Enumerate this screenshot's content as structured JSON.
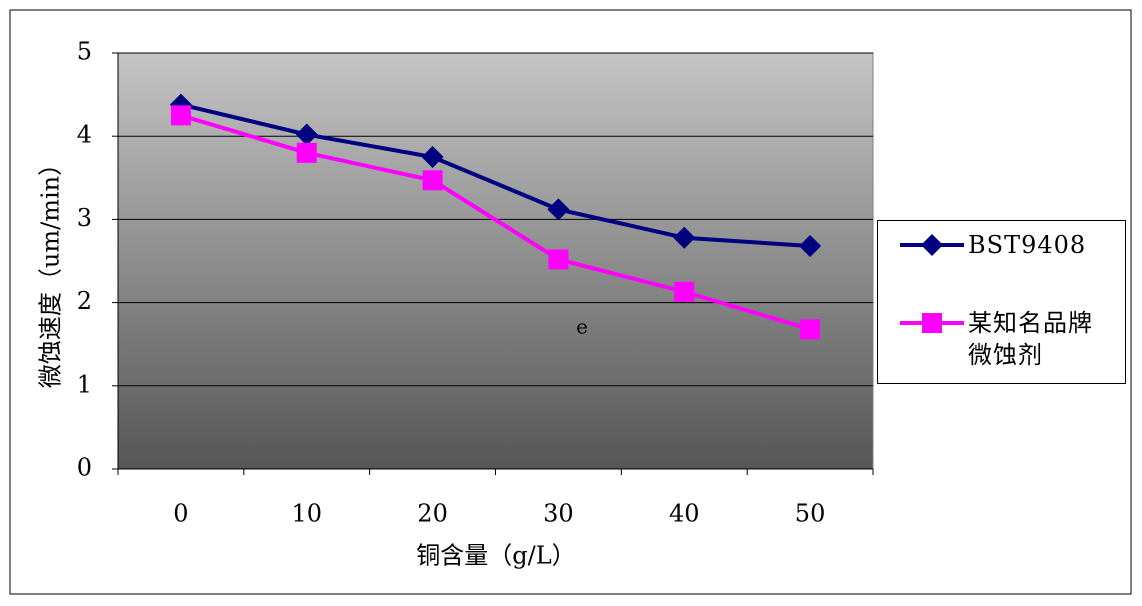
{
  "chart_data": {
    "type": "line",
    "x_label": "铜含量（g/L）",
    "y_label": "微蚀速度（um/min）",
    "annotation": "e",
    "categories": [
      "0",
      "10",
      "20",
      "30",
      "40",
      "50"
    ],
    "series": [
      {
        "name": "BST9408",
        "color": "#000080",
        "marker": "diamond",
        "values": [
          4.38,
          4.02,
          3.75,
          3.12,
          2.78,
          2.68
        ]
      },
      {
        "name": "某知名品牌微蚀剂",
        "color": "#ff00ff",
        "marker": "square",
        "values": [
          4.25,
          3.8,
          3.47,
          2.52,
          2.13,
          1.68
        ]
      }
    ],
    "ylim": [
      0,
      5
    ],
    "yticks": [
      0,
      1,
      2,
      3,
      4,
      5
    ],
    "grid": true
  }
}
